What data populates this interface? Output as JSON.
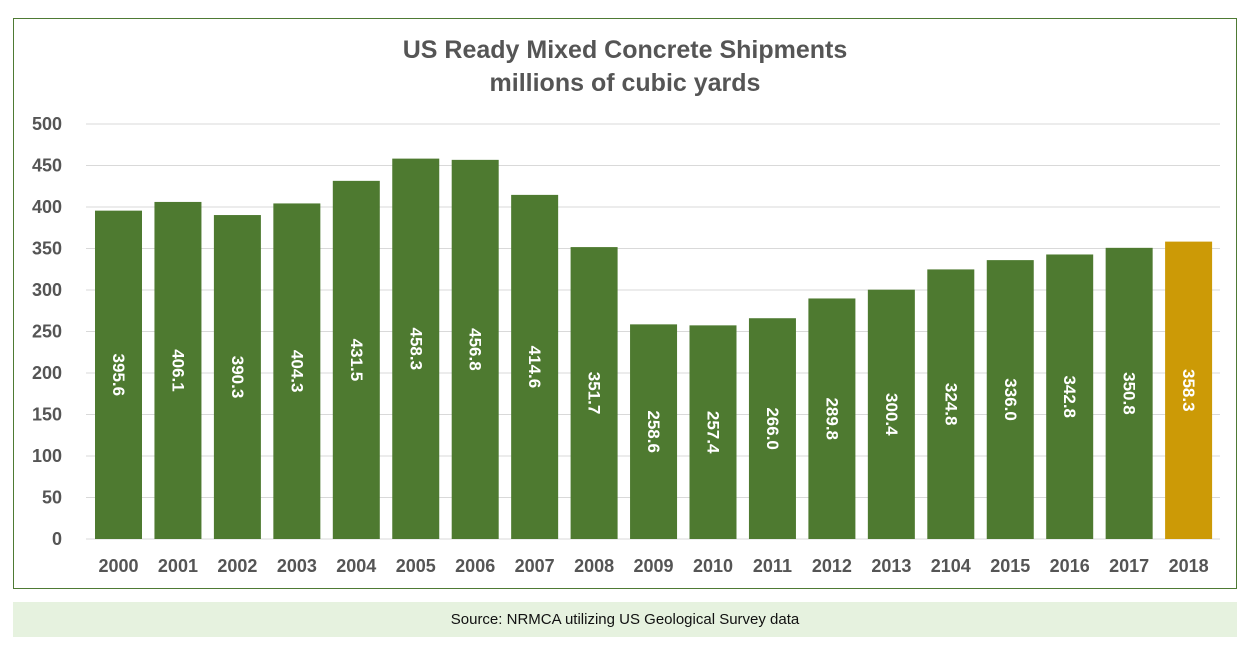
{
  "chart_data": {
    "type": "bar",
    "title": "US Ready Mixed Concrete Shipments",
    "subtitle": "millions of cubic yards",
    "categories": [
      "2000",
      "2001",
      "2002",
      "2003",
      "2004",
      "2005",
      "2006",
      "2007",
      "2008",
      "2009",
      "2010",
      "2011",
      "2012",
      "2013",
      "2104",
      "2015",
      "2016",
      "2017",
      "2018"
    ],
    "values": [
      395.6,
      406.1,
      390.3,
      404.3,
      431.5,
      458.3,
      456.8,
      414.6,
      351.7,
      258.6,
      257.4,
      266.0,
      289.8,
      300.4,
      324.8,
      336.0,
      342.8,
      350.8,
      358.3
    ],
    "labels": [
      "395.6",
      "406.1",
      "390.3",
      "404.3",
      "431.5",
      "458.3",
      "456.8",
      "414.6",
      "351.7",
      "258.6",
      "257.4",
      "266.0",
      "289.8",
      "300.4",
      "324.8",
      "336.0",
      "342.8",
      "350.8",
      "358.3"
    ],
    "yticks": [
      "0",
      "50",
      "100",
      "150",
      "200",
      "250",
      "300",
      "350",
      "400",
      "450",
      "500"
    ],
    "ylim": [
      0,
      500
    ],
    "grid": true,
    "legend": "none",
    "colors": {
      "bar": "#4e7a30",
      "highlight": "#cc9a06",
      "highlight_category": "2018"
    }
  },
  "source": "Source: NRMCA utilizing US Geological Survey data"
}
